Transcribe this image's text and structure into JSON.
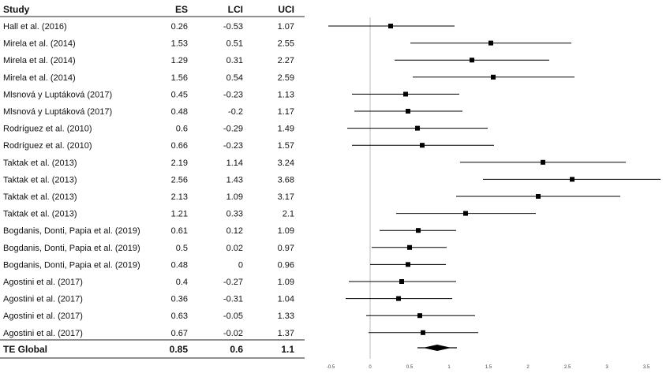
{
  "headers": {
    "study": "Study",
    "es": "ES",
    "lci": "LCI",
    "uci": "UCI"
  },
  "chart_data": {
    "type": "forest",
    "xlim": [
      -0.5,
      3.5
    ],
    "x_ticks": [
      "-0.5",
      "0",
      "0.5",
      "1",
      "1.5",
      "2",
      "2.5",
      "3",
      "3.5"
    ],
    "x_tick_values": [
      -0.5,
      0,
      0.5,
      1,
      1.5,
      2,
      2.5,
      3,
      3.5
    ],
    "reference_line": 0,
    "rows": [
      {
        "study": "Hall et al. (2016)",
        "es": 0.26,
        "lci": -0.53,
        "uci": 1.07,
        "es_label": "0.26",
        "lci_label": "-0.53",
        "uci_label": "1.07"
      },
      {
        "study": "Mirela et al. (2014)",
        "es": 1.53,
        "lci": 0.51,
        "uci": 2.55,
        "es_label": "1.53",
        "lci_label": "0.51",
        "uci_label": "2.55"
      },
      {
        "study": "Mirela et al. (2014)",
        "es": 1.29,
        "lci": 0.31,
        "uci": 2.27,
        "es_label": "1.29",
        "lci_label": "0.31",
        "uci_label": "2.27"
      },
      {
        "study": "Mirela et al. (2014)",
        "es": 1.56,
        "lci": 0.54,
        "uci": 2.59,
        "es_label": "1.56",
        "lci_label": "0.54",
        "uci_label": "2.59"
      },
      {
        "study": "Mlsnová y Luptáková (2017)",
        "es": 0.45,
        "lci": -0.23,
        "uci": 1.13,
        "es_label": "0.45",
        "lci_label": "-0.23",
        "uci_label": "1.13"
      },
      {
        "study": "Mlsnová y Luptáková (2017)",
        "es": 0.48,
        "lci": -0.2,
        "uci": 1.17,
        "es_label": "0.48",
        "lci_label": "-0.2",
        "uci_label": "1.17"
      },
      {
        "study": "Rodríguez et al. (2010)",
        "es": 0.6,
        "lci": -0.29,
        "uci": 1.49,
        "es_label": "0.6",
        "lci_label": "-0.29",
        "uci_label": "1.49"
      },
      {
        "study": "Rodríguez et al. (2010)",
        "es": 0.66,
        "lci": -0.23,
        "uci": 1.57,
        "es_label": "0.66",
        "lci_label": "-0.23",
        "uci_label": "1.57"
      },
      {
        "study": "Taktak et al. (2013)",
        "es": 2.19,
        "lci": 1.14,
        "uci": 3.24,
        "es_label": "2.19",
        "lci_label": "1.14",
        "uci_label": "3.24"
      },
      {
        "study": "Taktak et al. (2013)",
        "es": 2.56,
        "lci": 1.43,
        "uci": 3.68,
        "es_label": "2.56",
        "lci_label": "1.43",
        "uci_label": "3.68"
      },
      {
        "study": "Taktak et al. (2013)",
        "es": 2.13,
        "lci": 1.09,
        "uci": 3.17,
        "es_label": "2.13",
        "lci_label": "1.09",
        "uci_label": "3.17"
      },
      {
        "study": "Taktak et al. (2013)",
        "es": 1.21,
        "lci": 0.33,
        "uci": 2.1,
        "es_label": "1.21",
        "lci_label": "0.33",
        "uci_label": "2.1"
      },
      {
        "study": "Bogdanis, Donti, Papia et al. (2019)",
        "es": 0.61,
        "lci": 0.12,
        "uci": 1.09,
        "es_label": "0.61",
        "lci_label": "0.12",
        "uci_label": "1.09"
      },
      {
        "study": "Bogdanis, Donti, Papia et al. (2019)",
        "es": 0.5,
        "lci": 0.02,
        "uci": 0.97,
        "es_label": "0.5",
        "lci_label": "0.02",
        "uci_label": "0.97"
      },
      {
        "study": "Bogdanis, Donti, Papia et al. (2019)",
        "es": 0.48,
        "lci": 0,
        "uci": 0.96,
        "es_label": "0.48",
        "lci_label": "0",
        "uci_label": "0.96"
      },
      {
        "study": "Agostini et al. (2017)",
        "es": 0.4,
        "lci": -0.27,
        "uci": 1.09,
        "es_label": "0.4",
        "lci_label": "-0.27",
        "uci_label": "1.09"
      },
      {
        "study": "Agostini et al. (2017)",
        "es": 0.36,
        "lci": -0.31,
        "uci": 1.04,
        "es_label": "0.36",
        "lci_label": "-0.31",
        "uci_label": "1.04"
      },
      {
        "study": "Agostini et al. (2017)",
        "es": 0.63,
        "lci": -0.05,
        "uci": 1.33,
        "es_label": "0.63",
        "lci_label": "-0.05",
        "uci_label": "1.33"
      },
      {
        "study": "Agostini et al. (2017)",
        "es": 0.67,
        "lci": -0.02,
        "uci": 1.37,
        "es_label": "0.67",
        "lci_label": "-0.02",
        "uci_label": "1.37"
      }
    ],
    "overall": {
      "study": "TE Global",
      "es": 0.85,
      "lci": 0.6,
      "uci": 1.1,
      "es_label": "0.85",
      "lci_label": "0.6",
      "uci_label": "1.1"
    }
  }
}
